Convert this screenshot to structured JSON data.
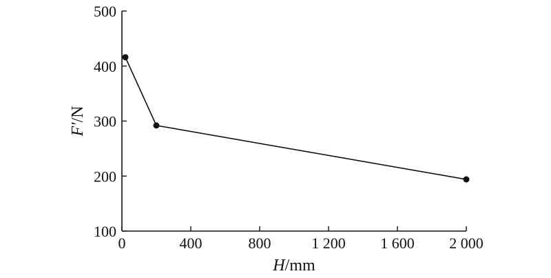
{
  "chart_data": {
    "type": "line",
    "title": "",
    "xlabel": {
      "var": "H",
      "unit": "/mm"
    },
    "ylabel": {
      "var": "F′",
      "unit": "/N"
    },
    "xlim": [
      0,
      2000
    ],
    "ylim": [
      100,
      500
    ],
    "x_ticks": [
      0,
      400,
      800,
      1200,
      1600,
      2000
    ],
    "x_tick_labels": [
      "0",
      "400",
      "800",
      "1 200",
      "1 600",
      "2 000"
    ],
    "y_ticks": [
      100,
      200,
      300,
      400,
      500
    ],
    "y_tick_labels": [
      "100",
      "200",
      "300",
      "400",
      "500"
    ],
    "grid": false,
    "series": [
      {
        "x": [
          20,
          200,
          2000
        ],
        "y": [
          416,
          292,
          194
        ]
      }
    ]
  }
}
